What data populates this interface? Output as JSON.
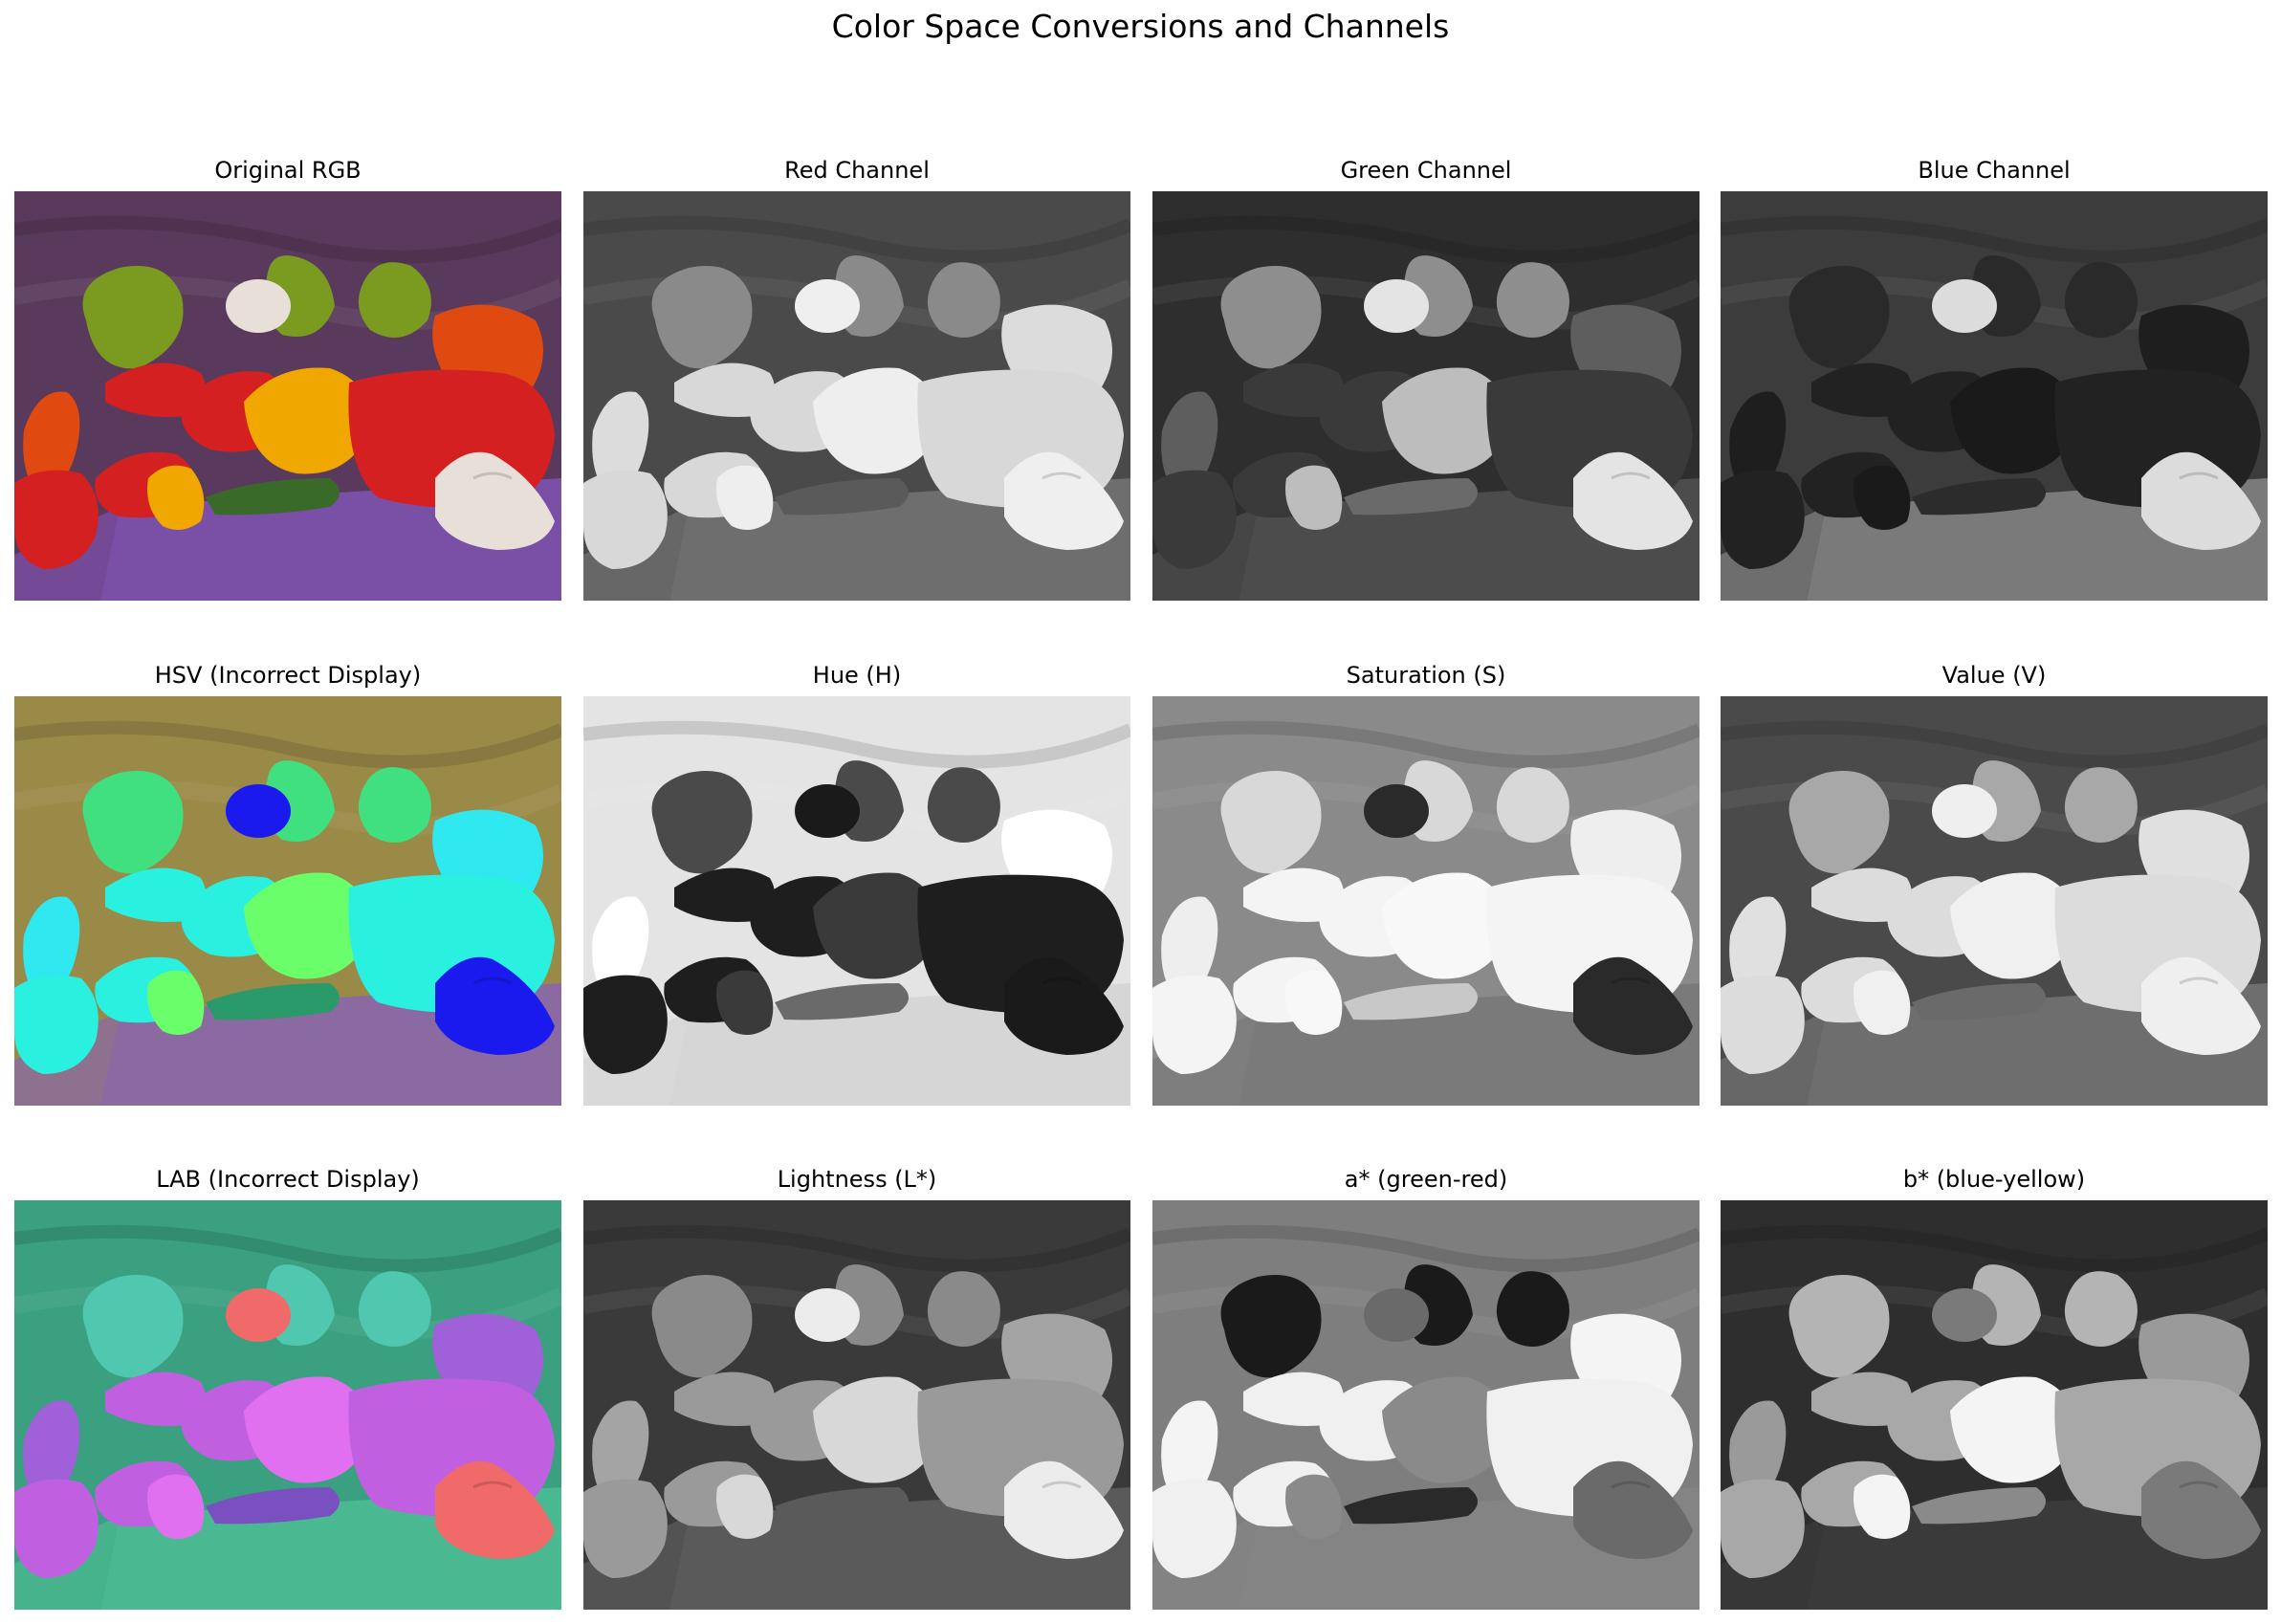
{
  "figure": {
    "title": "Color Space Conversions and Channels"
  },
  "panels": [
    {
      "title": "Original RGB",
      "colors": {
        "bg": "#5a3a5c",
        "table": "#7a4fa6",
        "p1": "#d42020",
        "p2": "#f0a800",
        "p3": "#7a9a20",
        "p4": "#e04a10",
        "garlic": "#e8e0d8",
        "stem": "#3a6a2a"
      }
    },
    {
      "title": "Red Channel",
      "colors": {
        "bg": "#4a4a4a",
        "table": "#6e6e6e",
        "p1": "#d8d8d8",
        "p2": "#eeeeee",
        "p3": "#8a8a8a",
        "p4": "#dcdcdc",
        "garlic": "#efefef",
        "stem": "#5a5a5a"
      }
    },
    {
      "title": "Green Channel",
      "colors": {
        "bg": "#2e2e2e",
        "table": "#4c4c4c",
        "p1": "#3a3a3a",
        "p2": "#bdbdbd",
        "p3": "#8e8e8e",
        "p4": "#5e5e5e",
        "garlic": "#e4e4e4",
        "stem": "#6a6a6a"
      }
    },
    {
      "title": "Blue Channel",
      "colors": {
        "bg": "#3c3c3c",
        "table": "#7a7a7a",
        "p1": "#222222",
        "p2": "#1a1a1a",
        "p3": "#2a2a2a",
        "p4": "#1e1e1e",
        "garlic": "#dcdcdc",
        "stem": "#2c2c2c"
      }
    },
    {
      "title": "HSV (Incorrect Display)",
      "colors": {
        "bg": "#9a8a48",
        "table": "#8a6aa0",
        "p1": "#2af0e0",
        "p2": "#6aff6a",
        "p3": "#40e080",
        "p4": "#30e8f0",
        "garlic": "#1a1aee",
        "stem": "#2a9a6a"
      }
    },
    {
      "title": "Hue (H)",
      "colors": {
        "bg": "#e4e4e4",
        "table": "#d6d6d6",
        "p1": "#1e1e1e",
        "p2": "#3a3a3a",
        "p3": "#4a4a4a",
        "p4": "#ffffff",
        "garlic": "#1a1a1a",
        "stem": "#6a6a6a"
      }
    },
    {
      "title": "Saturation (S)",
      "colors": {
        "bg": "#8a8a8a",
        "table": "#7a7a7a",
        "p1": "#f4f4f4",
        "p2": "#f8f8f8",
        "p3": "#d8d8d8",
        "p4": "#eeeeee",
        "garlic": "#2a2a2a",
        "stem": "#c8c8c8"
      }
    },
    {
      "title": "Value (V)",
      "colors": {
        "bg": "#4a4a4a",
        "table": "#6e6e6e",
        "p1": "#dcdcdc",
        "p2": "#f0f0f0",
        "p3": "#a8a8a8",
        "p4": "#e0e0e0",
        "garlic": "#efefef",
        "stem": "#6a6a6a"
      }
    },
    {
      "title": "LAB (Incorrect Display)",
      "colors": {
        "bg": "#3aa080",
        "table": "#4ab890",
        "p1": "#c060e0",
        "p2": "#e070f0",
        "p3": "#50c8b0",
        "p4": "#a060d8",
        "garlic": "#f06a6a",
        "stem": "#7a50c0"
      }
    },
    {
      "title": "Lightness (L*)",
      "colors": {
        "bg": "#3a3a3a",
        "table": "#5a5a5a",
        "p1": "#9a9a9a",
        "p2": "#d8d8d8",
        "p3": "#8a8a8a",
        "p4": "#a4a4a4",
        "garlic": "#ececec",
        "stem": "#5a5a5a"
      }
    },
    {
      "title": "a* (green-red)",
      "colors": {
        "bg": "#7e7e7e",
        "table": "#848484",
        "p1": "#f0f0f0",
        "p2": "#8a8a8a",
        "p3": "#1a1a1a",
        "p4": "#f4f4f4",
        "garlic": "#6a6a6a",
        "stem": "#2a2a2a"
      }
    },
    {
      "title": "b* (blue-yellow)",
      "colors": {
        "bg": "#2e2e2e",
        "table": "#3a3a3a",
        "p1": "#a8a8a8",
        "p2": "#f4f4f4",
        "p3": "#b4b4b4",
        "p4": "#9a9a9a",
        "garlic": "#7a7a7a",
        "stem": "#8a8a8a"
      }
    }
  ]
}
